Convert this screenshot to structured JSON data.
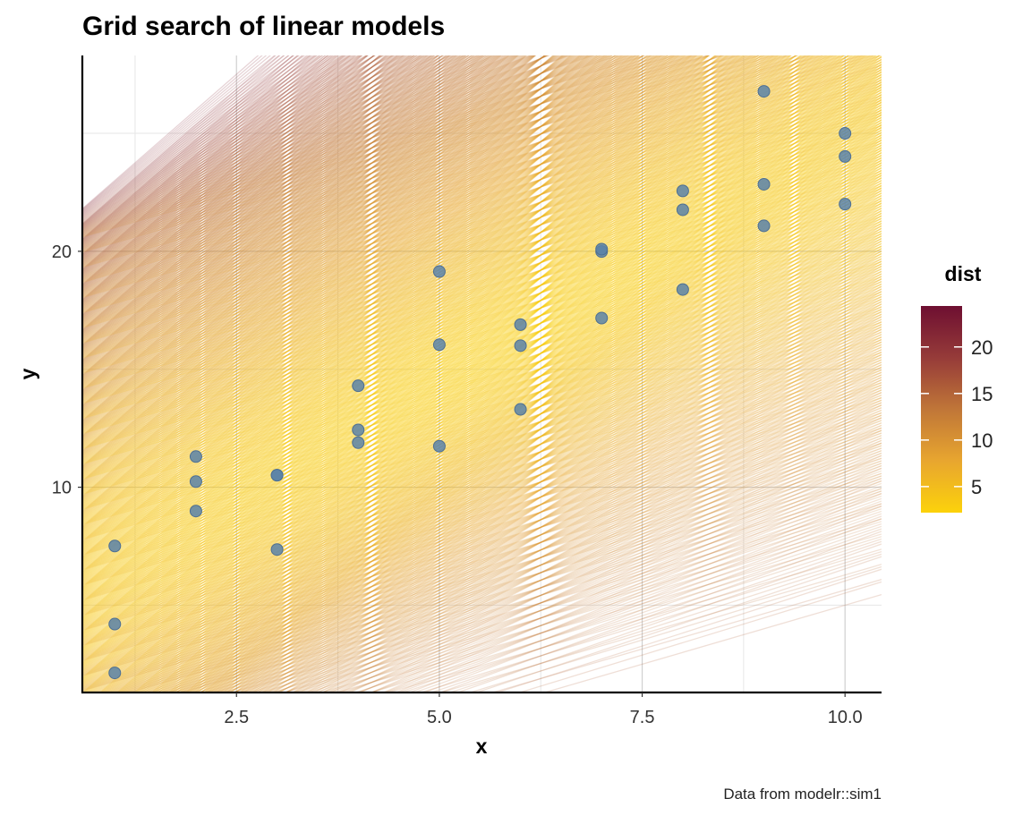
{
  "chart_data": {
    "type": "line+scatter",
    "title": "Grid search of linear models",
    "xlabel": "x",
    "ylabel": "y",
    "caption": "Data from modelr::sim1",
    "xlim": [
      0.6,
      10.45
    ],
    "ylim": [
      1.3,
      28.3
    ],
    "x_ticks": [
      2.5,
      5.0,
      7.5,
      10.0
    ],
    "x_tick_labels": [
      "2.5",
      "5.0",
      "7.5",
      "10.0"
    ],
    "y_ticks": [
      10,
      20
    ],
    "y_tick_labels": [
      "10",
      "20"
    ],
    "grid": true,
    "lines": {
      "description": "grid of candidate lines y = a1 + a2 * x",
      "a1_range": [
        -5,
        20
      ],
      "a2_range": [
        1,
        3
      ],
      "color_var": "dist"
    },
    "points": {
      "x": [
        1,
        1,
        1,
        2,
        2,
        2,
        3,
        3,
        3,
        4,
        4,
        4,
        5,
        5,
        5,
        6,
        6,
        6,
        7,
        7,
        7,
        8,
        8,
        8,
        9,
        9,
        9,
        10,
        10,
        10
      ],
      "y": [
        4.2,
        7.51,
        2.13,
        8.99,
        10.24,
        11.3,
        7.36,
        10.51,
        10.51,
        12.43,
        11.89,
        14.3,
        19.14,
        11.74,
        16.04,
        13.3,
        16.0,
        16.89,
        19.99,
        17.17,
        20.09,
        22.56,
        18.38,
        21.76,
        26.78,
        21.08,
        22.84,
        24.02,
        22.0,
        25.0
      ],
      "color": "#5b82a8"
    },
    "legend": {
      "title": "dist",
      "range": [
        2.2,
        24.4
      ],
      "ticks": [
        5,
        10,
        15,
        20
      ],
      "tick_labels": [
        "5",
        "10",
        "15",
        "20"
      ],
      "placement": "right",
      "colors": [
        "#fcd20b",
        "#e8a62f",
        "#c07638",
        "#963b39",
        "#6e0f31"
      ]
    }
  }
}
